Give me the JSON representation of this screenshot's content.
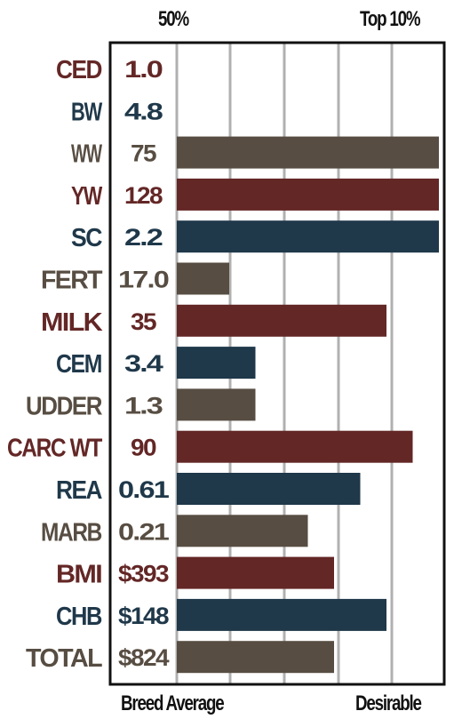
{
  "header": {
    "left_label": "50%",
    "right_label": "Top 10%"
  },
  "footer": {
    "left_label": "Breed Average",
    "right_label": "Desirable"
  },
  "colors": {
    "red": "#632726",
    "blue": "#1f384a",
    "gray": "#574d42",
    "grid": "#b0b0b0",
    "frame": "#111111"
  },
  "chart_data": {
    "type": "bar",
    "orientation": "horizontal",
    "grid": true,
    "categories": [
      "CED",
      "BW",
      "WW",
      "YW",
      "SC",
      "FERT",
      "MILK",
      "CEM",
      "UDDER",
      "CARC WT",
      "REA",
      "MARB",
      "BMI",
      "CHB",
      "TOTAL"
    ],
    "value_labels": [
      "1.0",
      "4.8",
      "75",
      "128",
      "2.2",
      "17.0",
      "35",
      "3.4",
      "1.3",
      "90",
      "0.61",
      "0.21",
      "$393",
      "$148",
      "$824"
    ],
    "values": [
      0,
      0,
      1.0,
      1.0,
      1.0,
      0.2,
      0.8,
      0.3,
      0.3,
      0.9,
      0.7,
      0.5,
      0.6,
      0.8,
      0.6
    ],
    "bar_colors": [
      "red",
      "blue",
      "gray",
      "red",
      "blue",
      "gray",
      "red",
      "blue",
      "gray",
      "red",
      "blue",
      "gray",
      "red",
      "blue",
      "gray"
    ],
    "xlim": [
      0,
      1
    ]
  }
}
